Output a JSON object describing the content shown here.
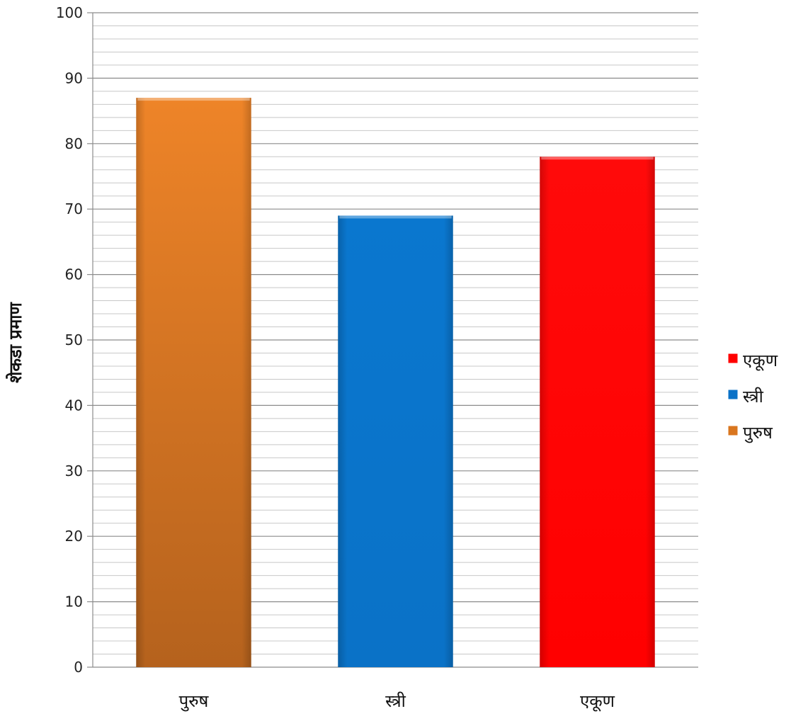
{
  "chart_data": {
    "type": "bar",
    "title": "",
    "xlabel": "",
    "ylabel": "शेकडा प्रमाण",
    "ylim": [
      0,
      100
    ],
    "yticks": [
      0,
      10,
      20,
      30,
      40,
      50,
      60,
      70,
      80,
      90,
      100
    ],
    "grid": true,
    "legend_position": "right",
    "categories": [
      "पुरुष",
      "स्त्री",
      "एकूण"
    ],
    "values": [
      87,
      69,
      78
    ],
    "colors": [
      "#d9761f",
      "#0a72c7",
      "#ff0000"
    ],
    "legend": [
      {
        "label": "एकूण",
        "color": "#ff0000"
      },
      {
        "label": "स्त्री",
        "color": "#0a72c7"
      },
      {
        "label": "पुरुष",
        "color": "#d9761f"
      }
    ]
  }
}
